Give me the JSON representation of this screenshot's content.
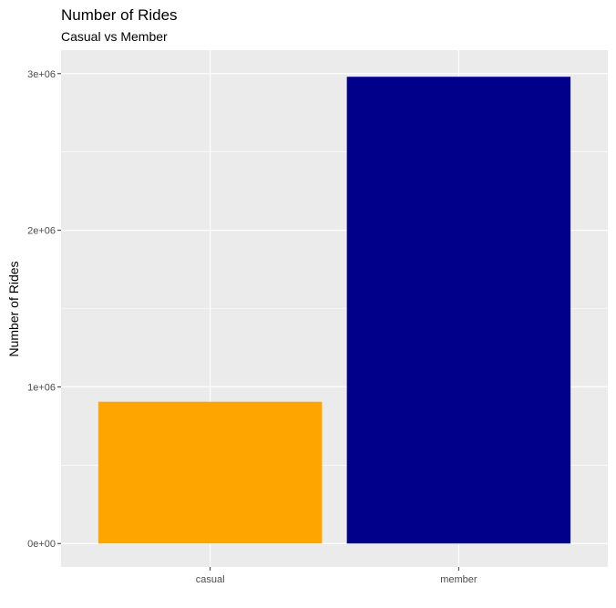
{
  "chart_data": {
    "type": "bar",
    "title": "Number of Rides",
    "subtitle": "Casual vs Member",
    "xlabel": "",
    "ylabel": "Number of Rides",
    "categories": [
      "casual",
      "member"
    ],
    "values": [
      905000,
      2980000
    ],
    "bar_colors": [
      "#ffa500",
      "#00008b"
    ],
    "ylim": [
      -150000,
      3150000
    ],
    "y_ticks": [
      0,
      1000000,
      2000000,
      3000000
    ],
    "y_tick_labels": [
      "0e+00",
      "1e+06",
      "2e+06",
      "3e+06"
    ],
    "grid": true,
    "legend": "none",
    "panel_background": "#ebebeb",
    "grid_color": "#ffffff"
  }
}
